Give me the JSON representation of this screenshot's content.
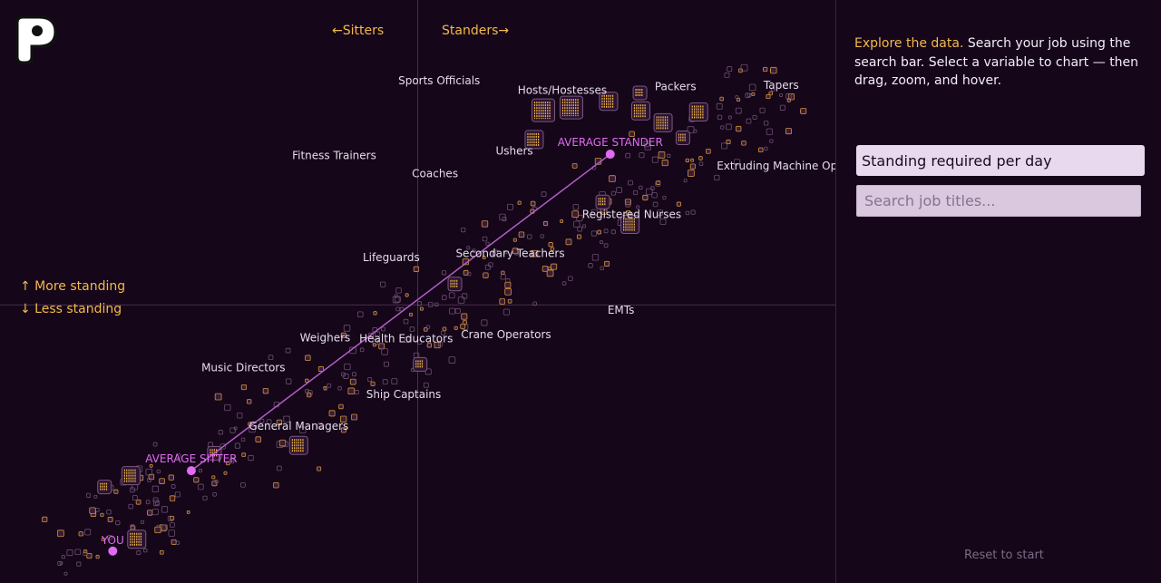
{
  "logo": {
    "letter": "P"
  },
  "sidebar": {
    "intro_lead": "Explore the data.",
    "intro_text": "Search your job using the search bar. Select a variable to chart — then drag, zoom, and hover.",
    "variable_selected": "Standing required per day",
    "search_placeholder": "Search job titles...",
    "reset_label": "Reset to start"
  },
  "colors": {
    "background": "#150619",
    "accent_orange": "#f3b94a",
    "accent_pink": "#e06bf0",
    "label_text": "#e6dcea"
  },
  "chart_data": {
    "type": "scatter",
    "title": "",
    "xlabel": "",
    "ylabel": "",
    "axis_labels": {
      "left": "←Sitters",
      "right": "Standers→",
      "up": "↑ More standing",
      "down": "↓ Less standing"
    },
    "x_domain": [
      0,
      100
    ],
    "y_domain": [
      0,
      100
    ],
    "grid": false,
    "reference_lines": {
      "x": 50,
      "y": 49
    },
    "trend_line": {
      "from": "AVERAGE SITTER",
      "to": "AVERAGE STANDER"
    },
    "markers": [
      {
        "label": "AVERAGE STANDER",
        "x": 73.3,
        "y": 75.8
      },
      {
        "label": "AVERAGE SITTER",
        "x": 22.6,
        "y": 19.5
      },
      {
        "label": "YOU",
        "x": 13.1,
        "y": 5.2
      }
    ],
    "labeled_jobs": [
      {
        "label": "Sports Officials",
        "x": 52.6,
        "y": 88.2
      },
      {
        "label": "Hosts/Hostesses",
        "x": 67.5,
        "y": 86.5
      },
      {
        "label": "Packers",
        "x": 81.2,
        "y": 87.2
      },
      {
        "label": "Tapers",
        "x": 94.0,
        "y": 87.4
      },
      {
        "label": "Fitness Trainers",
        "x": 39.9,
        "y": 74.9
      },
      {
        "label": "Ushers",
        "x": 61.7,
        "y": 75.7
      },
      {
        "label": "Coaches",
        "x": 52.1,
        "y": 71.7
      },
      {
        "label": "Extruding Machine Ope",
        "x": 93.9,
        "y": 73.1
      },
      {
        "label": "Registered Nurses",
        "x": 75.9,
        "y": 64.4
      },
      {
        "label": "Lifeguards",
        "x": 46.8,
        "y": 56.8
      },
      {
        "label": "Secondary Teachers",
        "x": 61.2,
        "y": 57.5
      },
      {
        "label": "EMTs",
        "x": 74.6,
        "y": 47.4
      },
      {
        "label": "Crane Operators",
        "x": 60.7,
        "y": 43.1
      },
      {
        "label": "Weighers",
        "x": 38.8,
        "y": 42.5
      },
      {
        "label": "Health Educators",
        "x": 48.6,
        "y": 42.3
      },
      {
        "label": "Music Directors",
        "x": 28.9,
        "y": 37.2
      },
      {
        "label": "Ship Captains",
        "x": 48.3,
        "y": 32.4
      },
      {
        "label": "General Managers",
        "x": 35.6,
        "y": 26.8
      }
    ],
    "job_clusters": [
      {
        "x": 65.2,
        "y": 83.6,
        "size": 3
      },
      {
        "x": 68.6,
        "y": 84.1,
        "size": 3
      },
      {
        "x": 73.1,
        "y": 85.2,
        "size": 2
      },
      {
        "x": 77.0,
        "y": 83.5,
        "size": 2
      },
      {
        "x": 79.7,
        "y": 81.4,
        "size": 2
      },
      {
        "x": 84.0,
        "y": 83.3,
        "size": 2
      },
      {
        "x": 76.9,
        "y": 86.7,
        "size": 1
      },
      {
        "x": 64.1,
        "y": 78.4,
        "size": 2
      },
      {
        "x": 82.1,
        "y": 78.7,
        "size": 1
      },
      {
        "x": 75.7,
        "y": 63.3,
        "size": 2
      },
      {
        "x": 72.4,
        "y": 67.3,
        "size": 1
      },
      {
        "x": 35.6,
        "y": 24.0,
        "size": 2
      },
      {
        "x": 25.4,
        "y": 22.6,
        "size": 1
      },
      {
        "x": 15.3,
        "y": 18.6,
        "size": 2
      },
      {
        "x": 16.0,
        "y": 7.3,
        "size": 2
      },
      {
        "x": 54.5,
        "y": 52.7,
        "size": 1
      },
      {
        "x": 50.3,
        "y": 38.4,
        "size": 1
      },
      {
        "x": 12.1,
        "y": 16.6,
        "size": 1
      }
    ]
  }
}
